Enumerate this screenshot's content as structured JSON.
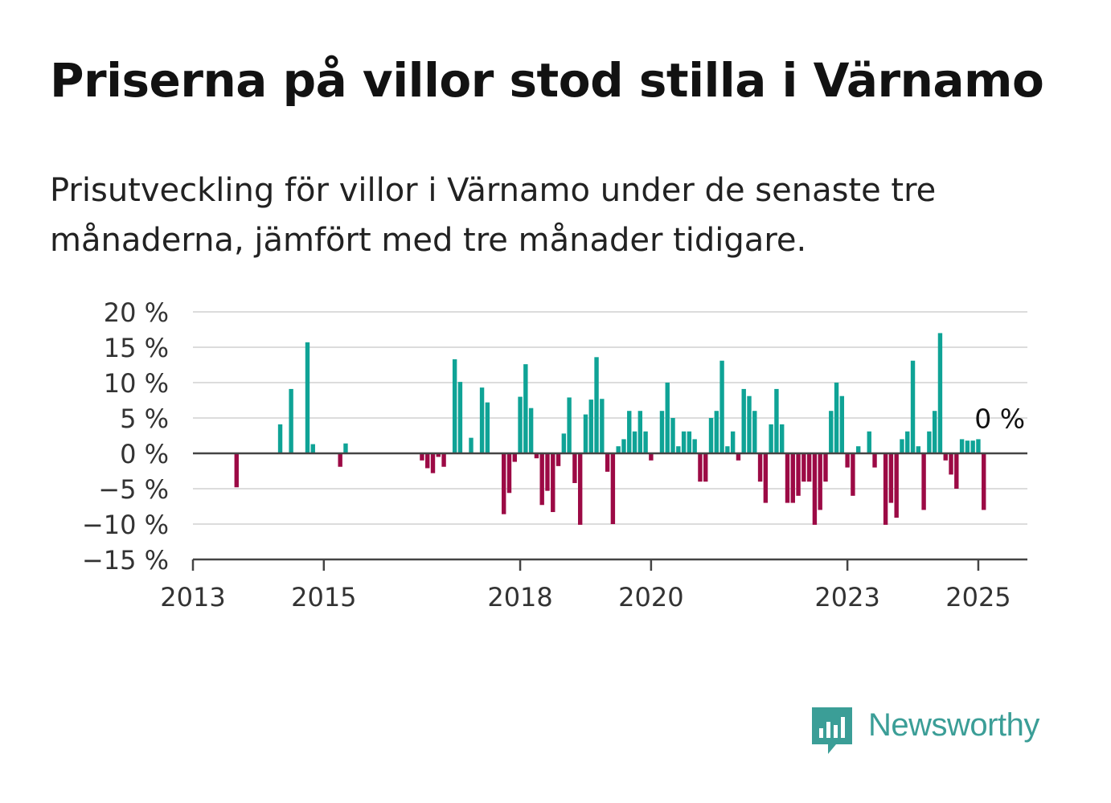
{
  "title": "Priserna på villor stod stilla i Värnamo",
  "subtitle": "Prisutveckling för villor i Värnamo under de senaste tre månaderna, jämfört med tre månader tidigare.",
  "brand": {
    "name": "Newsworthy",
    "color": "#3b9e97",
    "icon": "newsworthy-bar-chart-icon"
  },
  "chart_data": {
    "type": "bar",
    "ylim": [
      -15,
      20
    ],
    "xlim": [
      "2013-01",
      "2025-10"
    ],
    "grid": true,
    "y_ticks": [
      "20 %",
      "15 %",
      "10 %",
      "5 %",
      "0 %",
      "−5 %",
      "−10 %",
      "−15 %"
    ],
    "y_tick_values": [
      20,
      15,
      10,
      5,
      0,
      -5,
      -10,
      -15
    ],
    "x_ticks": [
      "2013",
      "2015",
      "2018",
      "2020",
      "2023",
      "2025"
    ],
    "colors": {
      "positive": "#0fa396",
      "negative": "#9c0a45"
    },
    "annotation": {
      "text": "0 %",
      "x": "2025-02"
    },
    "x": [
      "2013-09",
      "2014-05",
      "2014-07",
      "2014-10",
      "2014-11",
      "2015-04",
      "2015-05",
      "2016-07",
      "2016-08",
      "2016-09",
      "2016-10",
      "2016-11",
      "2017-01",
      "2017-02",
      "2017-04",
      "2017-06",
      "2017-07",
      "2017-10",
      "2017-11",
      "2017-12",
      "2018-01",
      "2018-02",
      "2018-03",
      "2018-04",
      "2018-05",
      "2018-06",
      "2018-07",
      "2018-08",
      "2018-09",
      "2018-10",
      "2018-11",
      "2018-12",
      "2019-01",
      "2019-02",
      "2019-03",
      "2019-04",
      "2019-05",
      "2019-06",
      "2019-07",
      "2019-08",
      "2019-09",
      "2019-10",
      "2019-11",
      "2019-12",
      "2020-01",
      "2020-03",
      "2020-04",
      "2020-05",
      "2020-06",
      "2020-07",
      "2020-08",
      "2020-09",
      "2020-10",
      "2020-11",
      "2020-12",
      "2021-01",
      "2021-02",
      "2021-03",
      "2021-04",
      "2021-05",
      "2021-06",
      "2021-07",
      "2021-08",
      "2021-09",
      "2021-10",
      "2021-11",
      "2021-12",
      "2022-01",
      "2022-02",
      "2022-03",
      "2022-04",
      "2022-05",
      "2022-06",
      "2022-07",
      "2022-08",
      "2022-09",
      "2022-10",
      "2022-11",
      "2022-12",
      "2023-01",
      "2023-02",
      "2023-03",
      "2023-05",
      "2023-06",
      "2023-08",
      "2023-09",
      "2023-10",
      "2023-11",
      "2023-12",
      "2024-01",
      "2024-02",
      "2024-03",
      "2024-04",
      "2024-05",
      "2024-06",
      "2024-07",
      "2024-08",
      "2024-09",
      "2024-10",
      "2024-11",
      "2024-12",
      "2025-01",
      "2025-02",
      "2025-03"
    ],
    "values": [
      -4.8,
      4.1,
      9.1,
      15.7,
      1.3,
      -1.9,
      1.4,
      -1.0,
      -2.1,
      -2.8,
      -0.5,
      -1.9,
      13.3,
      10.1,
      2.2,
      9.3,
      7.2,
      -8.6,
      -5.6,
      -1.2,
      8.0,
      12.6,
      6.4,
      -0.7,
      -7.3,
      -5.3,
      -8.3,
      -1.8,
      2.8,
      7.9,
      -4.2,
      -10.1,
      5.5,
      7.6,
      13.6,
      7.7,
      -2.6,
      -10.0,
      1.0,
      2.0,
      6.0,
      3.1,
      6.0,
      3.1,
      -1.0,
      6.0,
      10.0,
      5.0,
      1.0,
      3.1,
      3.1,
      2.0,
      -4.0,
      -4.0,
      5.0,
      6.0,
      13.1,
      1.0,
      3.1,
      -1.0,
      9.1,
      8.1,
      6.0,
      -4.0,
      -7.0,
      4.1,
      9.1,
      4.1,
      -7.0,
      -7.0,
      -6.0,
      -4.0,
      -4.0,
      -10.1,
      -8.0,
      -4.0,
      6.0,
      10.0,
      8.1,
      -2.0,
      -6.0,
      1.0,
      3.1,
      -2.0,
      -10.1,
      -7.0,
      -9.1,
      2.0,
      3.1,
      13.1,
      1.0,
      -8.0,
      3.1,
      6.0,
      17.0,
      -1.0,
      -3.0,
      -5.0,
      2.0,
      1.8,
      1.8,
      2.0,
      -8.0,
      0.0
    ]
  }
}
